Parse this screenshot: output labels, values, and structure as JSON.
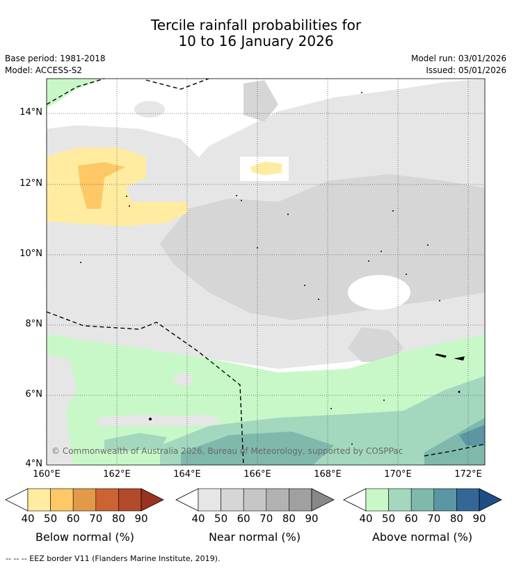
{
  "title": {
    "line1": "Tercile rainfall probabilities for",
    "line2": "10 to 16 January 2026"
  },
  "meta": {
    "base_period": "Base period: 1981-2018",
    "model": "Model: ACCESS-S2",
    "model_run": "Model run: 03/01/2026",
    "issued": "Issued: 05/01/2026"
  },
  "axes": {
    "lat_ticks": [
      "14°N",
      "12°N",
      "10°N",
      "8°N",
      "6°N",
      "4°N"
    ],
    "lon_ticks": [
      "160°E",
      "162°E",
      "164°E",
      "166°E",
      "168°E",
      "170°E",
      "172°E"
    ]
  },
  "copyright": "© Commonwealth of Australia 2026, Bureau of Meteorology, supported by COSPPac",
  "colorbars": [
    {
      "label": "Below normal (%)",
      "ticks": [
        "40",
        "50",
        "60",
        "70",
        "80",
        "90"
      ],
      "colors": [
        "#ffeca0",
        "#fdc865",
        "#e39a48",
        "#cc6333",
        "#b34a2c",
        "#9a3220"
      ]
    },
    {
      "label": "Near normal (%)",
      "ticks": [
        "40",
        "50",
        "60",
        "70",
        "80",
        "90"
      ],
      "colors": [
        "#e6e6e6",
        "#d6d6d6",
        "#c6c6c6",
        "#b2b2b2",
        "#a0a0a0",
        "#888888"
      ]
    },
    {
      "label": "Above normal (%)",
      "ticks": [
        "40",
        "50",
        "60",
        "70",
        "80",
        "90"
      ],
      "colors": [
        "#c8f8c8",
        "#a3d8be",
        "#7fb9ac",
        "#5a96a4",
        "#336797",
        "#1d4f86"
      ]
    }
  ],
  "footer": "--  --  -- EEZ border V11 (Flanders Marine Institute, 2019)."
}
